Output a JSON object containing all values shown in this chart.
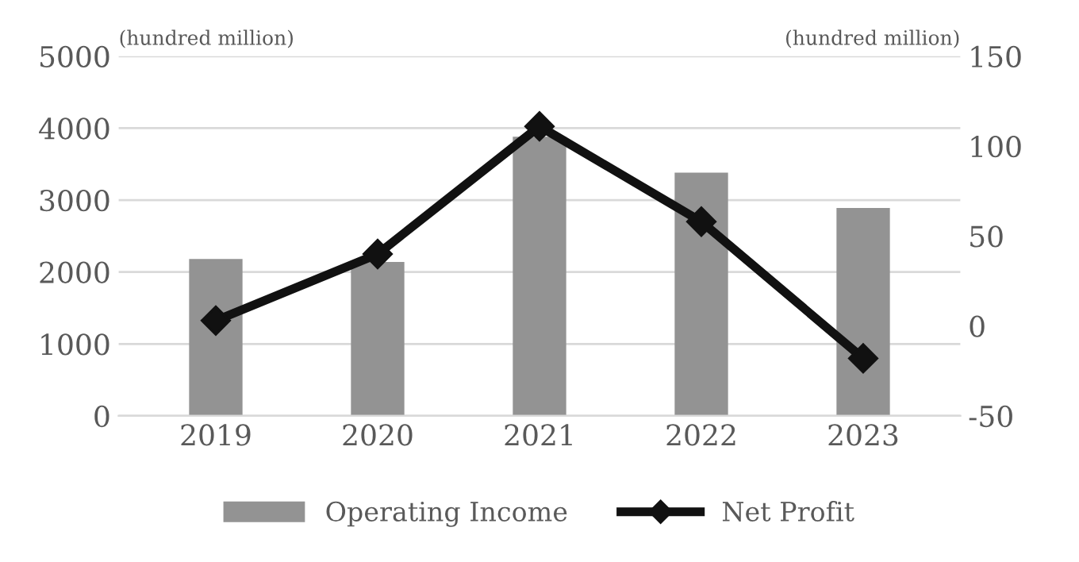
{
  "chart_data": {
    "type": "bar",
    "categories": [
      "2019",
      "2020",
      "2021",
      "2022",
      "2023"
    ],
    "ylabel": "(hundred million)",
    "y2label": "(hundred million)",
    "ylim": [
      0,
      5000
    ],
    "yticks": [
      0,
      1000,
      2000,
      3000,
      4000,
      5000
    ],
    "y2lim": [
      -50,
      150
    ],
    "y2ticks": [
      -50,
      0,
      50,
      100,
      150
    ],
    "grid": "y",
    "legend": "bottom",
    "series": [
      {
        "name": "Operating Income",
        "color": "#939393",
        "values": [
          2180,
          2140,
          3880,
          3380,
          2890
        ]
      },
      {
        "name": "Net Profit",
        "type": "line",
        "axis": "y2",
        "color": "#111111",
        "marker": "diamond",
        "line_style": "solid",
        "values": [
          3,
          40,
          111,
          58,
          -18
        ]
      }
    ]
  }
}
